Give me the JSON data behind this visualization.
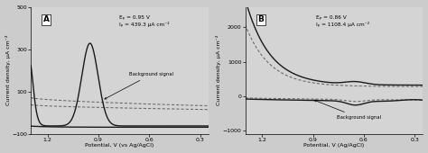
{
  "panel_A": {
    "label": "A",
    "xlabel": "Potential, V (vs Ag/AgCl)",
    "ylabel": "Current density, μA cm⁻²",
    "xlim": [
      1.3,
      0.25
    ],
    "ylim": [
      -100,
      500
    ],
    "yticks": [
      -100,
      100,
      300,
      500
    ],
    "xticks": [
      1.2,
      0.9,
      0.6,
      0.3
    ],
    "ep_text": "Eₚ = 0.95 V",
    "ip_text": "Iₚ = 439.3 μA cm⁻²",
    "bg_label": "Background signal"
  },
  "panel_B": {
    "label": "B",
    "xlabel": "Potential, V (Ag/AgCl)",
    "ylabel": "Current density, μA cm⁻²",
    "xlim": [
      1.3,
      0.25
    ],
    "ylim": [
      -1100,
      2600
    ],
    "yticks": [
      -1000,
      0,
      1000,
      2000
    ],
    "xticks": [
      1.2,
      0.9,
      0.6,
      0.3
    ],
    "ep_text": "Eₚ = 0.86 V",
    "ip_text": "Iₚ = 1108.4 μA cm⁻²",
    "bg_label": "Background signal"
  },
  "line_color_solid": "#1a1a1a",
  "line_color_dashed": "#666666",
  "fig_facecolor": "#cccccc"
}
